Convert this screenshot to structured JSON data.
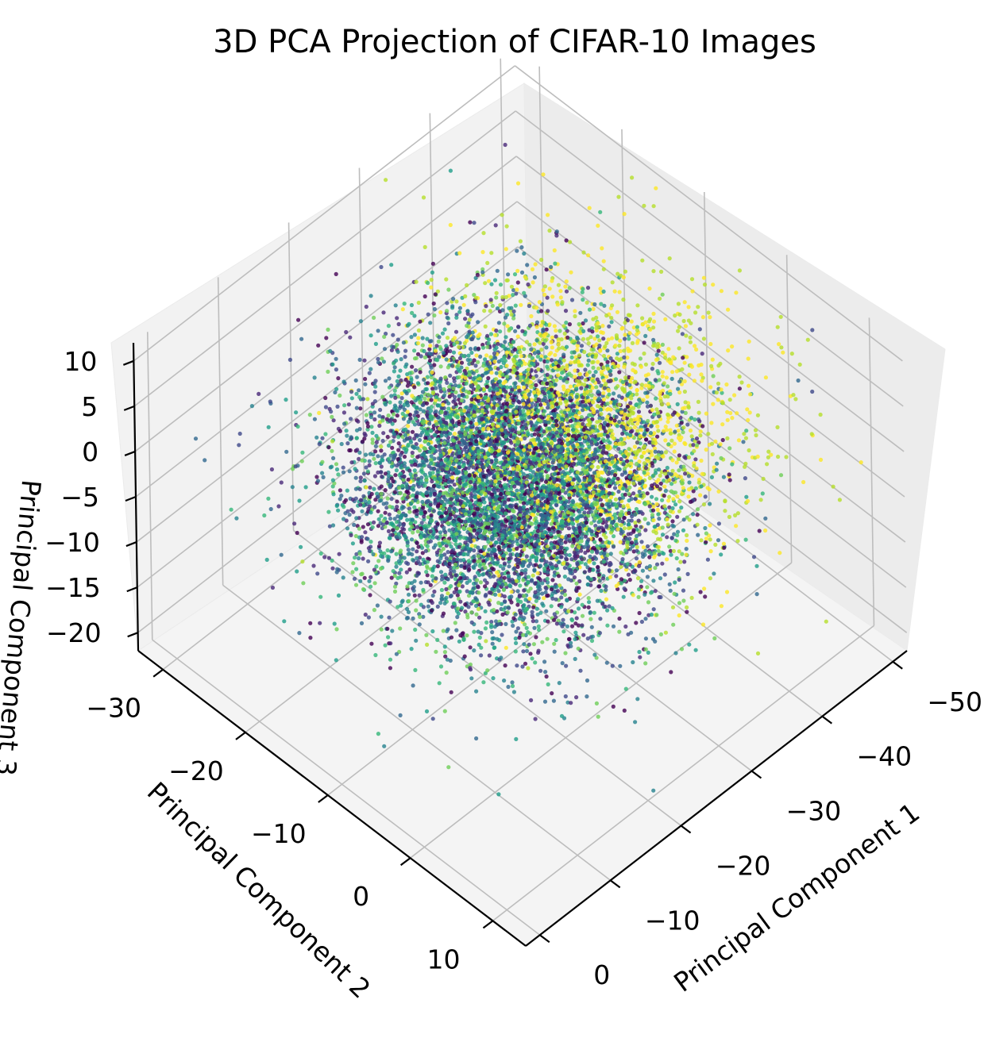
{
  "chart_data": {
    "type": "scatter",
    "title": "3D PCA Projection of CIFAR-10 Images",
    "xlabel": "Principal Component 1",
    "ylabel": "Principal Component 2",
    "zlabel": "Principal Component 3",
    "x_ticks": [
      "−50",
      "−40",
      "−30",
      "−20",
      "−10",
      "0"
    ],
    "y_ticks": [
      "−30",
      "−20",
      "−10",
      "0",
      "10"
    ],
    "z_ticks": [
      "10",
      "5",
      "0",
      "−5",
      "−10",
      "−15",
      "−20"
    ],
    "x_range": [
      -52,
      2
    ],
    "y_range": [
      -33,
      14
    ],
    "z_range": [
      -22,
      12
    ],
    "grid": true,
    "colormap": "viridis",
    "class_colors": [
      "#440154",
      "#482878",
      "#3e4989",
      "#31688e",
      "#26828e",
      "#1f9e89",
      "#35b779",
      "#6ece58",
      "#b5de2b",
      "#fde725"
    ],
    "point_distribution": {
      "pc1_mean": -24,
      "pc1_std": 9,
      "pc2_mean": -10,
      "pc2_std": 7,
      "pc3_mean": -3,
      "pc3_std": 5,
      "yellow_cluster_pc1_mean": -35,
      "n_points_rendered": 9000
    }
  }
}
